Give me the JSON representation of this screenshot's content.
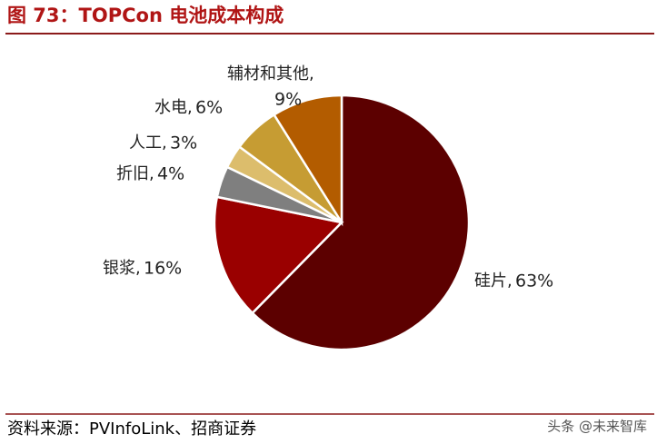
{
  "chart_data": {
    "type": "pie",
    "title": "图 73：TOPCon 电池成本构成",
    "categories": [
      "硅片,",
      "银浆,",
      "折旧,",
      "人工,",
      "水电,",
      "辅材和其他,"
    ],
    "values": [
      63,
      16,
      4,
      3,
      6,
      9
    ],
    "value_labels": [
      "63%",
      "16%",
      "4%",
      "3%",
      "6%",
      "9%"
    ],
    "colors": [
      "#5c0000",
      "#9a0000",
      "#7f7f7f",
      "#dcbd6c",
      "#c69c33",
      "#b35c00"
    ],
    "source": "资料来源：PVInfoLink、招商证券",
    "watermark": "头条 @未来智库"
  }
}
